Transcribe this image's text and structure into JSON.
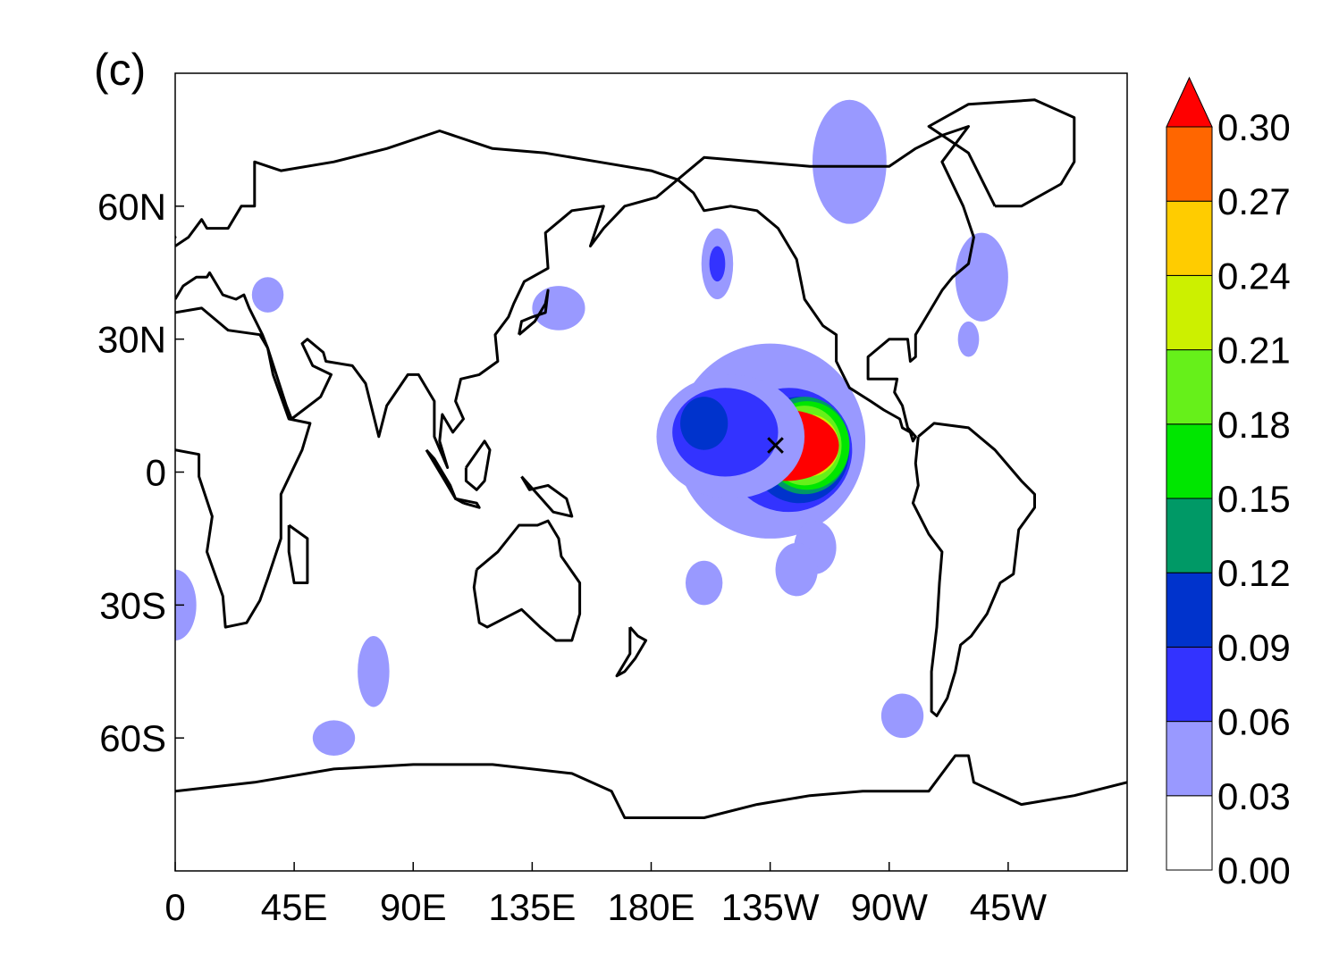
{
  "panel_label": "(c)",
  "map": {
    "projection": "cylindrical-equidistant",
    "lon_range": [
      0,
      360
    ],
    "lat_range": [
      -90,
      90
    ],
    "x_tick_labels": [
      "0",
      "45E",
      "90E",
      "135E",
      "180E",
      "135W",
      "90W",
      "45W"
    ],
    "x_tick_lons": [
      0,
      45,
      90,
      135,
      180,
      225,
      270,
      315
    ],
    "y_tick_labels": [
      "60N",
      "30N",
      "0",
      "30S",
      "60S"
    ],
    "y_tick_lats": [
      60,
      30,
      0,
      -30,
      -60
    ],
    "marker": {
      "symbol": "×",
      "lon": 227,
      "lat": 6
    },
    "field_regions": [
      {
        "lon": 225,
        "lat": 7,
        "rlon": 36,
        "rlat": 22,
        "level": 1
      },
      {
        "lon": 232,
        "lat": 5,
        "rlon": 24,
        "rlat": 14,
        "level": 2
      },
      {
        "lon": 236,
        "lat": 5,
        "rlon": 19,
        "rlat": 12,
        "level": 3
      },
      {
        "lon": 238,
        "lat": 6,
        "rlon": 17,
        "rlat": 11,
        "level": 4
      },
      {
        "lon": 239,
        "lat": 6,
        "rlon": 16,
        "rlat": 10,
        "level": 5
      },
      {
        "lon": 238,
        "lat": 6,
        "rlon": 14,
        "rlat": 9,
        "level": 6
      },
      {
        "lon": 240,
        "lat": 6,
        "rlon": 11,
        "rlat": 7,
        "level": 7
      },
      {
        "lon": 238,
        "lat": 7,
        "rlon": 9,
        "rlat": 6,
        "level": 8
      },
      {
        "lon": 237,
        "lat": 7,
        "rlon": 7,
        "rlat": 5,
        "level": 9
      },
      {
        "lon": 231,
        "lat": 6,
        "rlon": 20,
        "rlat": 8,
        "level": 10
      },
      {
        "lon": 210,
        "lat": 8,
        "rlon": 28,
        "rlat": 14,
        "level": 1
      },
      {
        "lon": 208,
        "lat": 9,
        "rlon": 20,
        "rlat": 10,
        "level": 2
      },
      {
        "lon": 200,
        "lat": 11,
        "rlon": 9,
        "rlat": 6,
        "level": 3
      },
      {
        "lon": 242,
        "lat": -17,
        "rlon": 8,
        "rlat": 6,
        "level": 1
      },
      {
        "lon": 145,
        "lat": 37,
        "rlon": 10,
        "rlat": 5,
        "level": 1
      },
      {
        "lon": 205,
        "lat": 47,
        "rlon": 6,
        "rlat": 8,
        "level": 1
      },
      {
        "lon": 205,
        "lat": 47,
        "rlon": 3,
        "rlat": 4,
        "level": 2
      },
      {
        "lon": 255,
        "lat": 70,
        "rlon": 14,
        "rlat": 14,
        "level": 1
      },
      {
        "lon": 305,
        "lat": 44,
        "rlon": 10,
        "rlat": 10,
        "level": 1
      },
      {
        "lon": 60,
        "lat": -60,
        "rlon": 8,
        "rlat": 4,
        "level": 1
      },
      {
        "lon": 0,
        "lat": -30,
        "rlon": 4,
        "rlat": 6,
        "level": 2
      },
      {
        "lon": 0,
        "lat": -30,
        "rlon": 8,
        "rlat": 8,
        "level": 1
      },
      {
        "lon": 275,
        "lat": -55,
        "rlon": 8,
        "rlat": 5,
        "level": 1
      },
      {
        "lon": 235,
        "lat": -22,
        "rlon": 8,
        "rlat": 6,
        "level": 1
      },
      {
        "lon": 200,
        "lat": -25,
        "rlon": 7,
        "rlat": 5,
        "level": 1
      },
      {
        "lon": 75,
        "lat": -45,
        "rlon": 6,
        "rlat": 8,
        "level": 1
      },
      {
        "lon": 300,
        "lat": 30,
        "rlon": 4,
        "rlat": 4,
        "level": 1
      },
      {
        "lon": 35,
        "lat": 40,
        "rlon": 6,
        "rlat": 4,
        "level": 1
      }
    ]
  },
  "colorbar": {
    "tick_labels": [
      "0.00",
      "0.03",
      "0.06",
      "0.09",
      "0.12",
      "0.15",
      "0.18",
      "0.21",
      "0.24",
      "0.27",
      "0.30"
    ],
    "tick_values": [
      0.0,
      0.03,
      0.06,
      0.09,
      0.12,
      0.15,
      0.18,
      0.21,
      0.24,
      0.27,
      0.3
    ],
    "colors": [
      "#ffffff",
      "#9999ff",
      "#3333ff",
      "#0033cc",
      "#009966",
      "#00e600",
      "#66f01a",
      "#ccf000",
      "#ffcc00",
      "#ff6600",
      "#ff0000"
    ],
    "extend": "max"
  }
}
